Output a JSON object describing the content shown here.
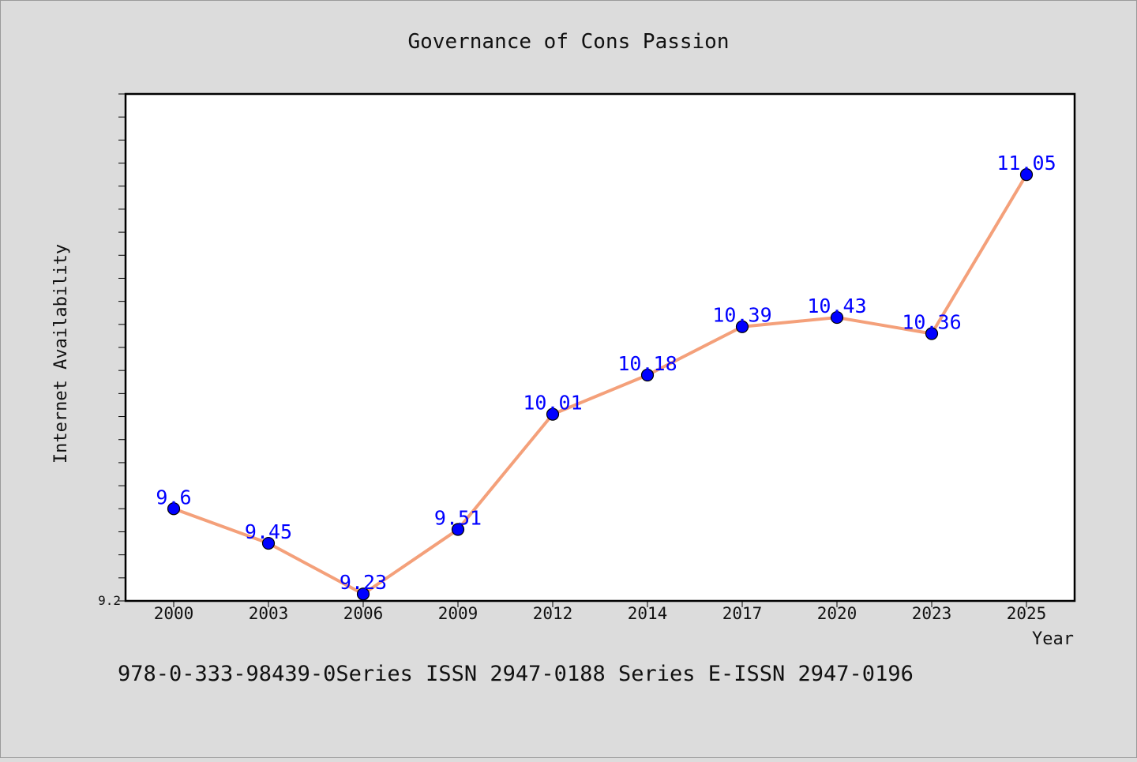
{
  "chart_data": {
    "type": "line",
    "title": "Governance of Cons Passion",
    "xlabel": "Year",
    "ylabel": "Internet Availability",
    "categories": [
      "2000",
      "2003",
      "2006",
      "2009",
      "2012",
      "2014",
      "2017",
      "2020",
      "2023",
      "2025"
    ],
    "series": [
      {
        "values": [
          9.6,
          9.45,
          9.23,
          9.51,
          10.01,
          10.18,
          10.39,
          10.43,
          10.36,
          11.05
        ]
      }
    ],
    "data_labels": [
      "9.6",
      "9.45",
      "9.23",
      "9.51",
      "10.01",
      "10.18",
      "10.39",
      "10.43",
      "10.36",
      "11.05"
    ],
    "ylim": [
      9.2,
      11.4
    ],
    "ytick_label": "9.2",
    "grid": false,
    "legend": "none",
    "colors": {
      "line": "#f4a07a",
      "marker": "#0000ff",
      "label": "#0000ff",
      "background": "#dcdcdc",
      "plot_bg": "#ffffff"
    }
  },
  "footer": {
    "text": "978-0-333-98439-0Series ISSN 2947-0188 Series E-ISSN 2947-0196"
  }
}
